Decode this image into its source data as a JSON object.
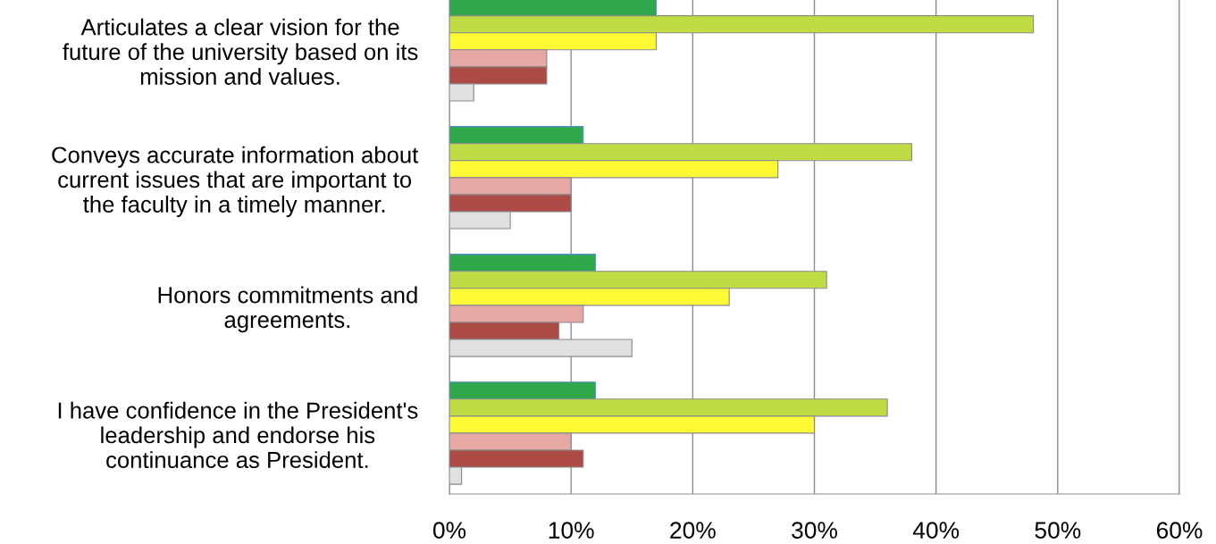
{
  "chart_data": {
    "type": "bar",
    "orientation": "horizontal",
    "categories": [
      "Articulates a clear vision for the\nfuture of the university based on its\nmission and values.",
      "Conveys accurate information about\ncurrent issues that are important to\nthe faculty in a timely manner.",
      "Honors commitments and\nagreements.",
      "I have confidence in the President's\nleadership and endorse his\ncontinuance as President."
    ],
    "series": [
      {
        "color": "#2ea84a",
        "values": [
          17,
          11,
          12,
          12
        ]
      },
      {
        "color": "#c0dc44",
        "values": [
          48,
          38,
          31,
          36
        ]
      },
      {
        "color": "#fef935",
        "values": [
          17,
          27,
          23,
          30
        ]
      },
      {
        "color": "#e5a8a3",
        "values": [
          8,
          10,
          11,
          10
        ]
      },
      {
        "color": "#ac4b45",
        "values": [
          8,
          10,
          9,
          11
        ]
      },
      {
        "color": "#e0e0e0",
        "values": [
          2,
          5,
          15,
          1
        ]
      }
    ],
    "xlim": [
      0,
      60
    ],
    "xticks": [
      {
        "value": 0,
        "label": "0%"
      },
      {
        "value": 10,
        "label": "10%"
      },
      {
        "value": 20,
        "label": "20%"
      },
      {
        "value": 30,
        "label": "30%"
      },
      {
        "value": 40,
        "label": "40%"
      },
      {
        "value": 50,
        "label": "50%"
      },
      {
        "value": 60,
        "label": "60%"
      }
    ],
    "grid": "x",
    "legend": false
  }
}
